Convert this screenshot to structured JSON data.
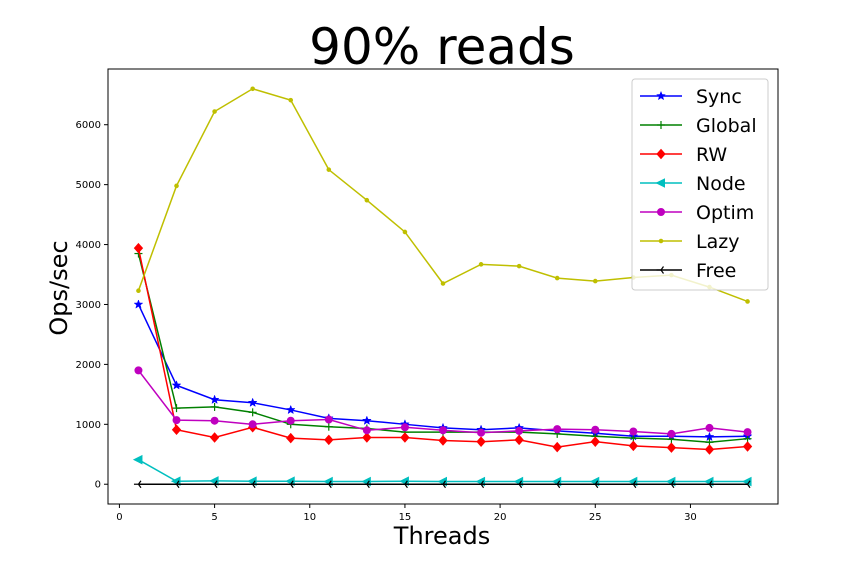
{
  "chart_data": {
    "type": "line",
    "title": "90% reads",
    "xlabel": "Threads",
    "ylabel": "Ops/sec",
    "xlim": [
      -0.6,
      34.6
    ],
    "ylim": [
      -330,
      6930
    ],
    "xticks": [
      0,
      5,
      10,
      15,
      20,
      25,
      30
    ],
    "yticks": [
      0,
      1000,
      2000,
      3000,
      4000,
      5000,
      6000
    ],
    "grid": false,
    "legend_position": "upper right",
    "x": [
      1,
      3,
      5,
      7,
      9,
      11,
      13,
      15,
      17,
      19,
      21,
      23,
      25,
      27,
      29,
      31,
      33
    ],
    "series": [
      {
        "name": "Sync",
        "color": "#0000ff",
        "marker": "star",
        "values": [
          3000,
          1650,
          1410,
          1360,
          1240,
          1100,
          1060,
          1000,
          940,
          910,
          940,
          890,
          850,
          800,
          800,
          790,
          800
        ]
      },
      {
        "name": "Global",
        "color": "#008000",
        "marker": "plus",
        "values": [
          3850,
          1270,
          1290,
          1200,
          1000,
          960,
          930,
          870,
          870,
          870,
          870,
          840,
          800,
          770,
          750,
          700,
          760
        ]
      },
      {
        "name": "RW",
        "color": "#ff0000",
        "marker": "diamond",
        "values": [
          3940,
          910,
          780,
          950,
          770,
          740,
          780,
          780,
          730,
          710,
          740,
          620,
          710,
          640,
          610,
          580,
          630
        ]
      },
      {
        "name": "Node",
        "color": "#00bfbf",
        "marker": "triangle-left",
        "values": [
          410,
          50,
          55,
          50,
          50,
          45,
          45,
          50,
          45,
          45,
          45,
          45,
          45,
          45,
          45,
          45,
          45
        ]
      },
      {
        "name": "Optim",
        "color": "#bf00bf",
        "marker": "circle",
        "values": [
          1900,
          1070,
          1060,
          1000,
          1060,
          1080,
          900,
          950,
          900,
          860,
          890,
          920,
          910,
          880,
          840,
          940,
          870
        ]
      },
      {
        "name": "Lazy",
        "color": "#bfbf00",
        "marker": "point",
        "values": [
          3230,
          4980,
          6220,
          6600,
          6410,
          5250,
          4740,
          4210,
          3350,
          3670,
          3640,
          3440,
          3390,
          3450,
          3490,
          3290,
          3050
        ]
      },
      {
        "name": "Free",
        "color": "#000000",
        "marker": "tri-left",
        "values": [
          0,
          0,
          0,
          0,
          0,
          0,
          0,
          0,
          0,
          0,
          0,
          0,
          0,
          0,
          0,
          0,
          0
        ]
      }
    ]
  }
}
